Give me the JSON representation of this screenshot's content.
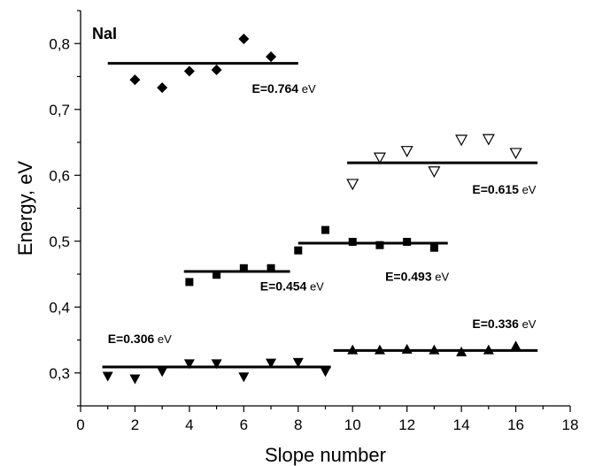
{
  "chart_data": {
    "type": "scatter",
    "title": "NaI",
    "xlabel": "Slope number",
    "ylabel": "Energy, eV",
    "xlim": [
      0,
      18
    ],
    "ylim": [
      0.25,
      0.85
    ],
    "xticks": [
      "0",
      "2",
      "4",
      "6",
      "8",
      "10",
      "12",
      "14",
      "16",
      "18"
    ],
    "yticks": [
      "0,3",
      "0,4",
      "0,5",
      "0,6",
      "0,7",
      "0,8"
    ],
    "grid": false,
    "series": [
      {
        "marker": "diamond",
        "points": [
          [
            2,
            0.745
          ],
          [
            3,
            0.733
          ],
          [
            4,
            0.758
          ],
          [
            5,
            0.76
          ],
          [
            6,
            0.807
          ],
          [
            7,
            0.78
          ]
        ],
        "fit": {
          "x": [
            1,
            8
          ],
          "y": 0.77
        },
        "annotation": {
          "value": "E=0.764",
          "unit": "eV",
          "anchor": [
            6.3,
            0.725
          ]
        }
      },
      {
        "marker": "triangle-down-open",
        "points": [
          [
            10,
            0.587
          ],
          [
            11,
            0.627
          ],
          [
            12,
            0.637
          ],
          [
            13,
            0.606
          ],
          [
            14,
            0.654
          ],
          [
            15,
            0.655
          ],
          [
            16,
            0.634
          ]
        ],
        "fit": {
          "x": [
            9.8,
            16.8
          ],
          "y": 0.619
        },
        "annotation": {
          "value": "E=0.615",
          "unit": "eV",
          "anchor": [
            14.4,
            0.572
          ]
        }
      },
      {
        "marker": "square",
        "points": [
          [
            4,
            0.438
          ],
          [
            5,
            0.449
          ],
          [
            6,
            0.459
          ],
          [
            7,
            0.459
          ],
          [
            8,
            0.486
          ],
          [
            9,
            0.517
          ]
        ],
        "fit": {
          "x": [
            3.8,
            7.7
          ],
          "y": 0.454
        },
        "annotation": {
          "value": "E=0.454",
          "unit": "eV",
          "anchor": [
            6.6,
            0.425
          ]
        }
      },
      {
        "marker": "square",
        "points": [
          [
            10,
            0.499
          ],
          [
            11,
            0.494
          ],
          [
            12,
            0.499
          ],
          [
            13,
            0.49
          ]
        ],
        "fit": {
          "x": [
            8,
            13.5
          ],
          "y": 0.497
        },
        "annotation": {
          "value": "E=0.493",
          "unit": "eV",
          "anchor": [
            11.2,
            0.44
          ]
        }
      },
      {
        "marker": "triangle-down",
        "points": [
          [
            1,
            0.295
          ],
          [
            2,
            0.291
          ],
          [
            3,
            0.302
          ],
          [
            4,
            0.314
          ],
          [
            5,
            0.314
          ],
          [
            6,
            0.294
          ],
          [
            7,
            0.315
          ],
          [
            8,
            0.316
          ],
          [
            9,
            0.302
          ]
        ],
        "fit": {
          "x": [
            0.8,
            9.2
          ],
          "y": 0.309
        },
        "annotation": {
          "value": "E=0.306",
          "unit": "eV",
          "anchor": [
            1.0,
            0.345
          ]
        }
      },
      {
        "marker": "triangle-up",
        "points": [
          [
            10,
            0.335
          ],
          [
            11,
            0.335
          ],
          [
            12,
            0.336
          ],
          [
            13,
            0.335
          ],
          [
            14,
            0.332
          ],
          [
            15,
            0.335
          ],
          [
            16,
            0.341
          ]
        ],
        "fit": {
          "x": [
            9.3,
            16.8
          ],
          "y": 0.334
        },
        "annotation": {
          "value": "E=0.336",
          "unit": "eV",
          "anchor": [
            14.4,
            0.368
          ]
        }
      }
    ]
  }
}
